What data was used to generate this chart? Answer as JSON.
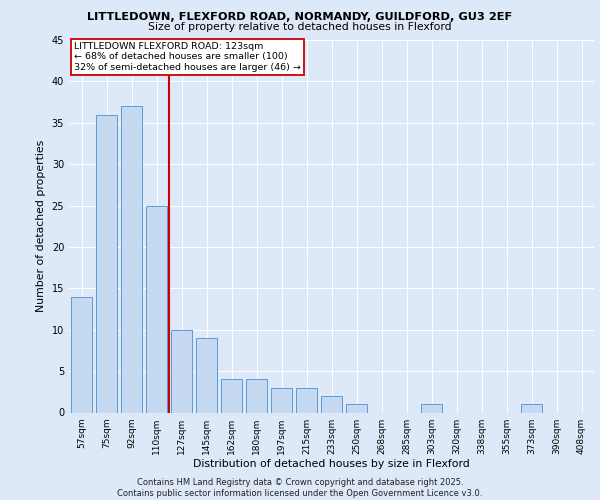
{
  "title1": "LITTLEDOWN, FLEXFORD ROAD, NORMANDY, GUILDFORD, GU3 2EF",
  "title2": "Size of property relative to detached houses in Flexford",
  "xlabel": "Distribution of detached houses by size in Flexford",
  "ylabel": "Number of detached properties",
  "categories": [
    "57sqm",
    "75sqm",
    "92sqm",
    "110sqm",
    "127sqm",
    "145sqm",
    "162sqm",
    "180sqm",
    "197sqm",
    "215sqm",
    "233sqm",
    "250sqm",
    "268sqm",
    "285sqm",
    "303sqm",
    "320sqm",
    "338sqm",
    "355sqm",
    "373sqm",
    "390sqm",
    "408sqm"
  ],
  "values": [
    14,
    36,
    37,
    25,
    10,
    9,
    4,
    4,
    3,
    3,
    2,
    1,
    0,
    0,
    1,
    0,
    0,
    0,
    1,
    0,
    0
  ],
  "bar_color": "#c5d9f1",
  "bar_edge_color": "#5b9bd5",
  "ylim": [
    0,
    45
  ],
  "yticks": [
    0,
    5,
    10,
    15,
    20,
    25,
    30,
    35,
    40,
    45
  ],
  "vline_x": 3.5,
  "vline_color": "#cc0000",
  "annotation_text": "LITTLEDOWN FLEXFORD ROAD: 123sqm\n← 68% of detached houses are smaller (100)\n32% of semi-detached houses are larger (46) →",
  "annotation_box_color": "#ffffff",
  "annotation_box_edge": "#cc0000",
  "bg_color": "#dde8f8",
  "plot_bg_color": "#dde8f8",
  "grid_color": "#ffffff",
  "footer": "Contains HM Land Registry data © Crown copyright and database right 2025.\nContains public sector information licensed under the Open Government Licence v3.0."
}
